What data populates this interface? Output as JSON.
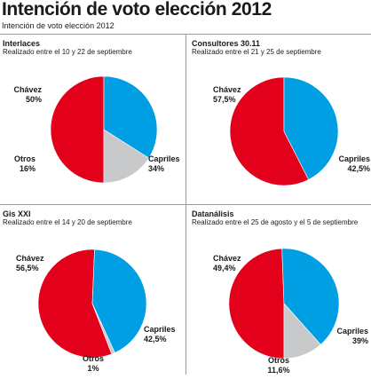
{
  "header": {
    "title": "Intención de voto elección 2012",
    "subtitle": "Intención de voto elección 2012"
  },
  "colors": {
    "chavez": "#e3001b",
    "capriles": "#009fe3",
    "otros": "#c8c9cb"
  },
  "chart_data": [
    {
      "type": "pie",
      "title": "Interlaces",
      "subtitle": "Realizado entre el 10 y 22 de septiembre",
      "slices": [
        {
          "name": "Chávez",
          "value": 50,
          "label": "50%",
          "color": "#e3001b"
        },
        {
          "name": "Capriles",
          "value": 34,
          "label": "34%",
          "color": "#009fe3"
        },
        {
          "name": "Otros",
          "value": 16,
          "label": "16%",
          "color": "#c8c9cb"
        }
      ]
    },
    {
      "type": "pie",
      "title": "Consultores 30.11",
      "subtitle": "Realizado entre el 21 y 25 de septiembre",
      "slices": [
        {
          "name": "Chávez",
          "value": 57.5,
          "label": "57,5%",
          "color": "#e3001b"
        },
        {
          "name": "Capriles",
          "value": 42.5,
          "label": "42,5%",
          "color": "#009fe3"
        }
      ]
    },
    {
      "type": "pie",
      "title": "Gis XXI",
      "subtitle": "Realizado entre el 14 y 20 de septiembre",
      "slices": [
        {
          "name": "Chávez",
          "value": 56.5,
          "label": "56,5%",
          "color": "#e3001b"
        },
        {
          "name": "Capriles",
          "value": 42.5,
          "label": "42,5%",
          "color": "#009fe3"
        },
        {
          "name": "Otros",
          "value": 1,
          "label": "1%",
          "color": "#c8c9cb"
        }
      ]
    },
    {
      "type": "pie",
      "title": "Datanálisis",
      "subtitle": "Realizado entre el 25 de agosto y el 5 de septiembre",
      "slices": [
        {
          "name": "Chávez",
          "value": 49.4,
          "label": "49,4%",
          "color": "#e3001b"
        },
        {
          "name": "Capriles",
          "value": 39,
          "label": "39%",
          "color": "#009fe3"
        },
        {
          "name": "Otros",
          "value": 11.6,
          "label": "11,6%",
          "color": "#c8c9cb"
        }
      ]
    }
  ]
}
